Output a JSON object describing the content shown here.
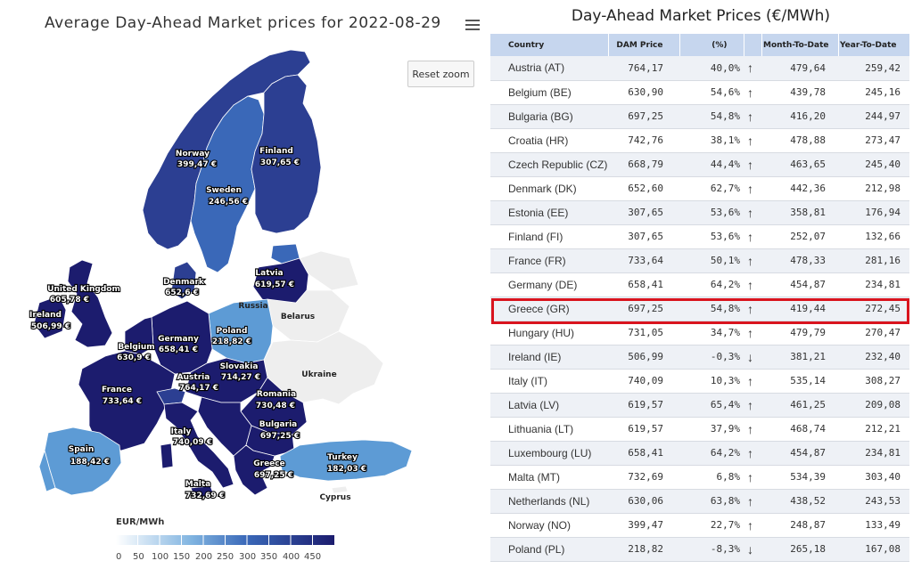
{
  "map": {
    "title": "Average Day-Ahead Market prices for 2022-08-29",
    "reset_zoom_label": "Reset zoom",
    "legend_title": "EUR/MWh",
    "legend_ticks": [
      "0",
      "50",
      "100",
      "150",
      "200",
      "250",
      "300",
      "350",
      "400",
      "450"
    ],
    "labels": {
      "norway_name": "Norway",
      "norway_value": "399,47 €",
      "finland_name": "Finland",
      "finland_value": "307,65 €",
      "sweden_name": "Sweden",
      "sweden_value": "246,56 €",
      "uk_name": "United Kingdom",
      "uk_value": "605,78 €",
      "ireland_name": "Ireland",
      "ireland_value": "506,99 €",
      "denmark_name": "Denmark",
      "denmark_value": "652,6 €",
      "latvia_name": "Latvia",
      "latvia_value": "619,57 €",
      "russia_name": "Russia",
      "belarus_name": "Belarus",
      "poland_name": "Poland",
      "poland_value": "218,82 €",
      "belgium_name": "Belgium",
      "belgium_value": "630,9 €",
      "germany_name": "Germany",
      "germany_value": "658,41 €",
      "ukraine_name": "Ukraine",
      "slovakia_name": "Slovakia",
      "slovakia_value": "714,27 €",
      "austria_name": "Austria",
      "austria_value": "764,17 €",
      "france_name": "France",
      "france_value": "733,64 €",
      "romania_name": "Romania",
      "romania_value": "730,48 €",
      "bulgaria_name": "Bulgaria",
      "bulgaria_value": "697,25 €",
      "italy_name": "Italy",
      "italy_value": "740,09 €",
      "spain_name": "Spain",
      "spain_value": "188,42 €",
      "turkey_name": "Turkey",
      "turkey_value": "182,03 €",
      "greece_name": "Greece",
      "greece_value": "697,25 €",
      "malta_name": "Malta",
      "malta_value": "732,69 €",
      "cyprus_name": "Cyprus"
    },
    "colors": {
      "very_high": "#1c1c6e",
      "high": "#2c3f92",
      "mid": "#3a68b8",
      "low": "#5d9bd5",
      "lighter": "#7fb3e0",
      "none": "#eeeeee",
      "sea": "#ffffff"
    }
  },
  "table": {
    "title": "Day-Ahead Market Prices (€/MWh)",
    "headers": {
      "country": "Country",
      "dam": "DAM Price",
      "pct": "(%)",
      "mtd": "Month-To-Date",
      "ytd": "Year-To-Date"
    },
    "highlighted_row": "Greece (GR)",
    "rows": [
      {
        "country": "Austria (AT)",
        "dam": "764,17",
        "pct": "40,0%",
        "dir": "up",
        "arrow": "↑",
        "mtd": "479,64",
        "ytd": "259,42"
      },
      {
        "country": "Belgium (BE)",
        "dam": "630,90",
        "pct": "54,6%",
        "dir": "up",
        "arrow": "↑",
        "mtd": "439,78",
        "ytd": "245,16"
      },
      {
        "country": "Bulgaria (BG)",
        "dam": "697,25",
        "pct": "54,8%",
        "dir": "up",
        "arrow": "↑",
        "mtd": "416,20",
        "ytd": "244,97"
      },
      {
        "country": "Croatia (HR)",
        "dam": "742,76",
        "pct": "38,1%",
        "dir": "up",
        "arrow": "↑",
        "mtd": "478,88",
        "ytd": "273,47"
      },
      {
        "country": "Czech Republic (CZ)",
        "dam": "668,79",
        "pct": "44,4%",
        "dir": "up",
        "arrow": "↑",
        "mtd": "463,65",
        "ytd": "245,40"
      },
      {
        "country": "Denmark (DK)",
        "dam": "652,60",
        "pct": "62,7%",
        "dir": "up",
        "arrow": "↑",
        "mtd": "442,36",
        "ytd": "212,98"
      },
      {
        "country": "Estonia (EE)",
        "dam": "307,65",
        "pct": "53,6%",
        "dir": "up",
        "arrow": "↑",
        "mtd": "358,81",
        "ytd": "176,94"
      },
      {
        "country": "Finland (FI)",
        "dam": "307,65",
        "pct": "53,6%",
        "dir": "up",
        "arrow": "↑",
        "mtd": "252,07",
        "ytd": "132,66"
      },
      {
        "country": "France (FR)",
        "dam": "733,64",
        "pct": "50,1%",
        "dir": "up",
        "arrow": "↑",
        "mtd": "478,33",
        "ytd": "281,16"
      },
      {
        "country": "Germany (DE)",
        "dam": "658,41",
        "pct": "64,2%",
        "dir": "up",
        "arrow": "↑",
        "mtd": "454,87",
        "ytd": "234,81"
      },
      {
        "country": "Greece (GR)",
        "dam": "697,25",
        "pct": "54,8%",
        "dir": "up",
        "arrow": "↑",
        "mtd": "419,44",
        "ytd": "272,45"
      },
      {
        "country": "Hungary (HU)",
        "dam": "731,05",
        "pct": "34,7%",
        "dir": "up",
        "arrow": "↑",
        "mtd": "479,79",
        "ytd": "270,47"
      },
      {
        "country": "Ireland (IE)",
        "dam": "506,99",
        "pct": "-0,3%",
        "dir": "down",
        "arrow": "↓",
        "mtd": "381,21",
        "ytd": "232,40"
      },
      {
        "country": "Italy (IT)",
        "dam": "740,09",
        "pct": "10,3%",
        "dir": "up",
        "arrow": "↑",
        "mtd": "535,14",
        "ytd": "308,27"
      },
      {
        "country": "Latvia (LV)",
        "dam": "619,57",
        "pct": "65,4%",
        "dir": "up",
        "arrow": "↑",
        "mtd": "461,25",
        "ytd": "209,08"
      },
      {
        "country": "Lithuania (LT)",
        "dam": "619,57",
        "pct": "37,9%",
        "dir": "up",
        "arrow": "↑",
        "mtd": "468,74",
        "ytd": "212,21"
      },
      {
        "country": "Luxembourg (LU)",
        "dam": "658,41",
        "pct": "64,2%",
        "dir": "up",
        "arrow": "↑",
        "mtd": "454,87",
        "ytd": "234,81"
      },
      {
        "country": "Malta (MT)",
        "dam": "732,69",
        "pct": "6,8%",
        "dir": "up",
        "arrow": "↑",
        "mtd": "534,39",
        "ytd": "303,40"
      },
      {
        "country": "Netherlands (NL)",
        "dam": "630,06",
        "pct": "63,8%",
        "dir": "up",
        "arrow": "↑",
        "mtd": "438,52",
        "ytd": "243,53"
      },
      {
        "country": "Norway (NO)",
        "dam": "399,47",
        "pct": "22,7%",
        "dir": "up",
        "arrow": "↑",
        "mtd": "248,87",
        "ytd": "133,49"
      },
      {
        "country": "Poland (PL)",
        "dam": "218,82",
        "pct": "-8,3%",
        "dir": "down",
        "arrow": "↓",
        "mtd": "265,18",
        "ytd": "167,08"
      }
    ]
  }
}
